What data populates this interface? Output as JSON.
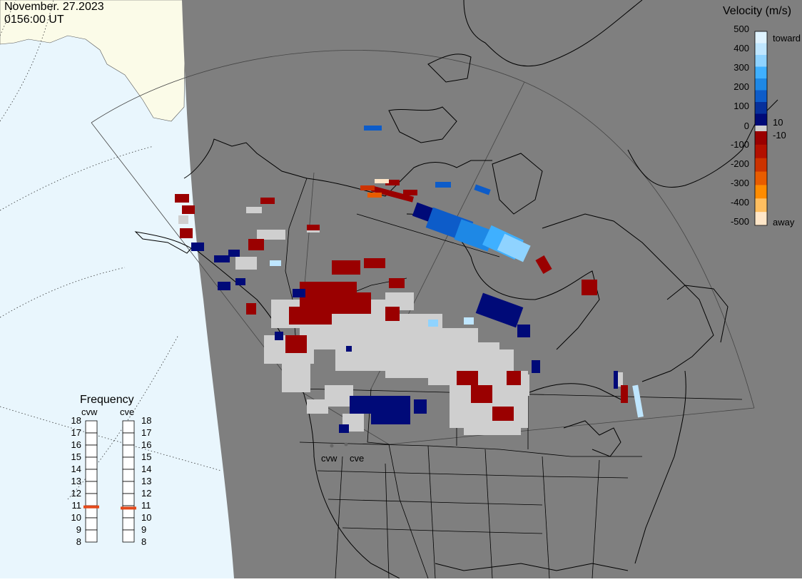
{
  "header": {
    "date": "November. 27.2023",
    "time": "0156:00 UT"
  },
  "colors": {
    "night": "#7f7f7f",
    "ocean": "#e9f6fd",
    "land_day": "#fbfbe8",
    "ground_scatter": "#cfcfcf"
  },
  "legend": {
    "title": "Velocity (m/s)",
    "ticks": [
      "500",
      "400",
      "300",
      "200",
      "100",
      "10",
      "0",
      "-10",
      "-100",
      "-200",
      "-300",
      "-400",
      "-500"
    ],
    "toward_label": "toward",
    "away_label": "away",
    "gradient": [
      "#dff3ff",
      "#bfe6ff",
      "#8fd3ff",
      "#3fb0ff",
      "#1e88e5",
      "#0d5cc9",
      "#07309b",
      "#000a78",
      "#9a0000",
      "#b31000",
      "#cc3300",
      "#e85c00",
      "#ff8c00",
      "#ffbf60",
      "#ffe6c8"
    ]
  },
  "radars": [
    {
      "code": "cvw",
      "label": "cvw"
    },
    {
      "code": "cve",
      "label": "cve"
    }
  ],
  "frequency": {
    "title": "Frequency",
    "scale": [
      "18",
      "17",
      "16",
      "15",
      "14",
      "13",
      "12",
      "11",
      "10",
      "9",
      "8"
    ],
    "selected_mhz": [
      10.9,
      10.8
    ],
    "marker_color": "#e4491b"
  }
}
